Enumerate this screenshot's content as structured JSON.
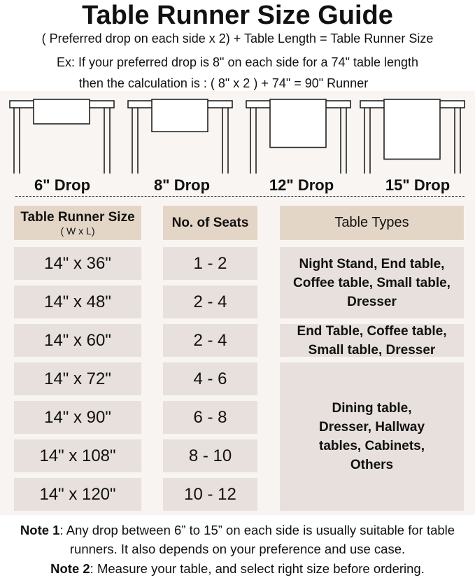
{
  "title": "Table Runner Size Guide",
  "formula": "( Preferred drop on each side x 2) + Table Length = Table Runner Size",
  "example_line1": "Ex: If your preferred drop is 8\" on each side for a 74\" table length",
  "example_line2": "then the calculation is : ( 8\" x 2 ) + 74\" = 90\" Runner",
  "drops": [
    {
      "label": "6\" Drop",
      "inches": 6
    },
    {
      "label": "8\" Drop",
      "inches": 8
    },
    {
      "label": "12\" Drop",
      "inches": 12
    },
    {
      "label": "15\" Drop",
      "inches": 15
    }
  ],
  "table": {
    "headers": {
      "size": "Table Runner Size",
      "size_sub": "( W x L)",
      "seats": "No. of Seats",
      "types": "Table Types"
    },
    "rows": [
      {
        "size": "14\" x 36\"",
        "seats": "1 - 2"
      },
      {
        "size": "14\" x 48\"",
        "seats": "2 - 4"
      },
      {
        "size": "14\" x 60\"",
        "seats": "2 - 4"
      },
      {
        "size": "14\" x 72\"",
        "seats": "4 - 6"
      },
      {
        "size": "14\" x 90\"",
        "seats": "6 - 8"
      },
      {
        "size": "14\" x 108\"",
        "seats": "8 - 10"
      },
      {
        "size": "14\" x 120\"",
        "seats": "10 - 12"
      }
    ],
    "types": [
      "Night Stand, End table, Coffee table, Small table, Dresser",
      "End Table, Coffee table, Small table, Dresser",
      "Dining table, Dresser, Hallway tables, Cabinets, Others"
    ]
  },
  "notes": {
    "note1_label": "Note 1",
    "note1_text": ": Any drop between 6” to 15” on each side is usually suitable for table runners. It also depends on your preference and use case.",
    "note2_label": "Note 2",
    "note2_text": ": Measure your table, and select right size before ordering."
  },
  "colors": {
    "header_cell": "#e4d6c7",
    "body_cell": "#e7e0dc",
    "panel": "#f8f4f1"
  }
}
